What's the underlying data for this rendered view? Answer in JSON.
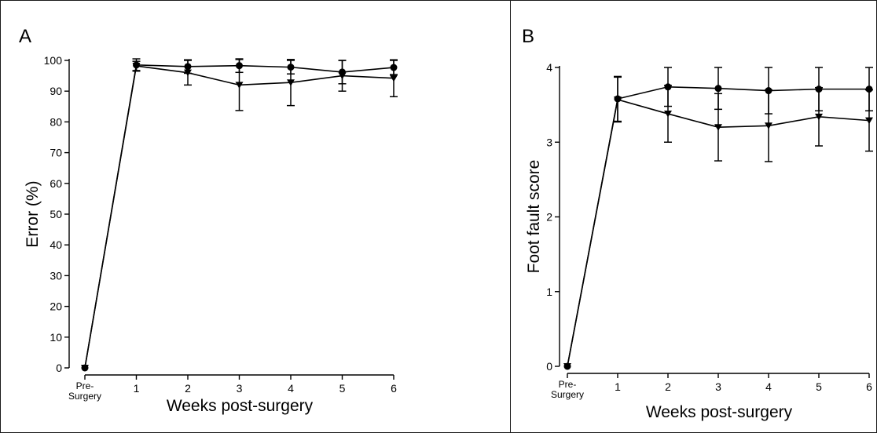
{
  "chart_data": [
    {
      "panel": "A",
      "type": "line",
      "title": "",
      "xlabel": "Weeks post-surgery",
      "ylabel": "Error (%)",
      "categories": [
        "Pre-\nSurgery",
        "1",
        "2",
        "3",
        "4",
        "5",
        "6"
      ],
      "ylim": [
        0,
        100
      ],
      "yticks": [
        0,
        10,
        20,
        30,
        40,
        50,
        60,
        70,
        80,
        90,
        100
      ],
      "grid": false,
      "series": [
        {
          "marker": "circle",
          "values": [
            0,
            98.5,
            98,
            98.3,
            97.8,
            96.2,
            97.7
          ],
          "errors": [
            0,
            2,
            2.2,
            2.2,
            2.2,
            3.8,
            2.3
          ]
        },
        {
          "marker": "triangle-down",
          "values": [
            0,
            98.2,
            96,
            92,
            92.8,
            95,
            94.2
          ],
          "errors": [
            0,
            1.5,
            4,
            8.3,
            7.5,
            5,
            6
          ]
        }
      ]
    },
    {
      "panel": "B",
      "type": "line",
      "title": "",
      "xlabel": "Weeks post-surgery",
      "ylabel": "Foot fault score",
      "categories": [
        "Pre-\nSurgery",
        "1",
        "2",
        "3",
        "4",
        "5",
        "6"
      ],
      "ylim": [
        0,
        4
      ],
      "yticks": [
        0,
        1,
        2,
        3,
        4
      ],
      "grid": false,
      "series": [
        {
          "marker": "circle",
          "values": [
            0,
            3.58,
            3.74,
            3.72,
            3.69,
            3.71,
            3.71
          ],
          "errors": [
            0,
            0.3,
            0.26,
            0.28,
            0.31,
            0.29,
            0.29
          ]
        },
        {
          "marker": "triangle-down",
          "values": [
            0,
            3.57,
            3.38,
            3.2,
            3.22,
            3.34,
            3.29
          ],
          "errors": [
            0,
            0.3,
            0.38,
            0.45,
            0.48,
            0.39,
            0.41
          ]
        }
      ]
    }
  ]
}
